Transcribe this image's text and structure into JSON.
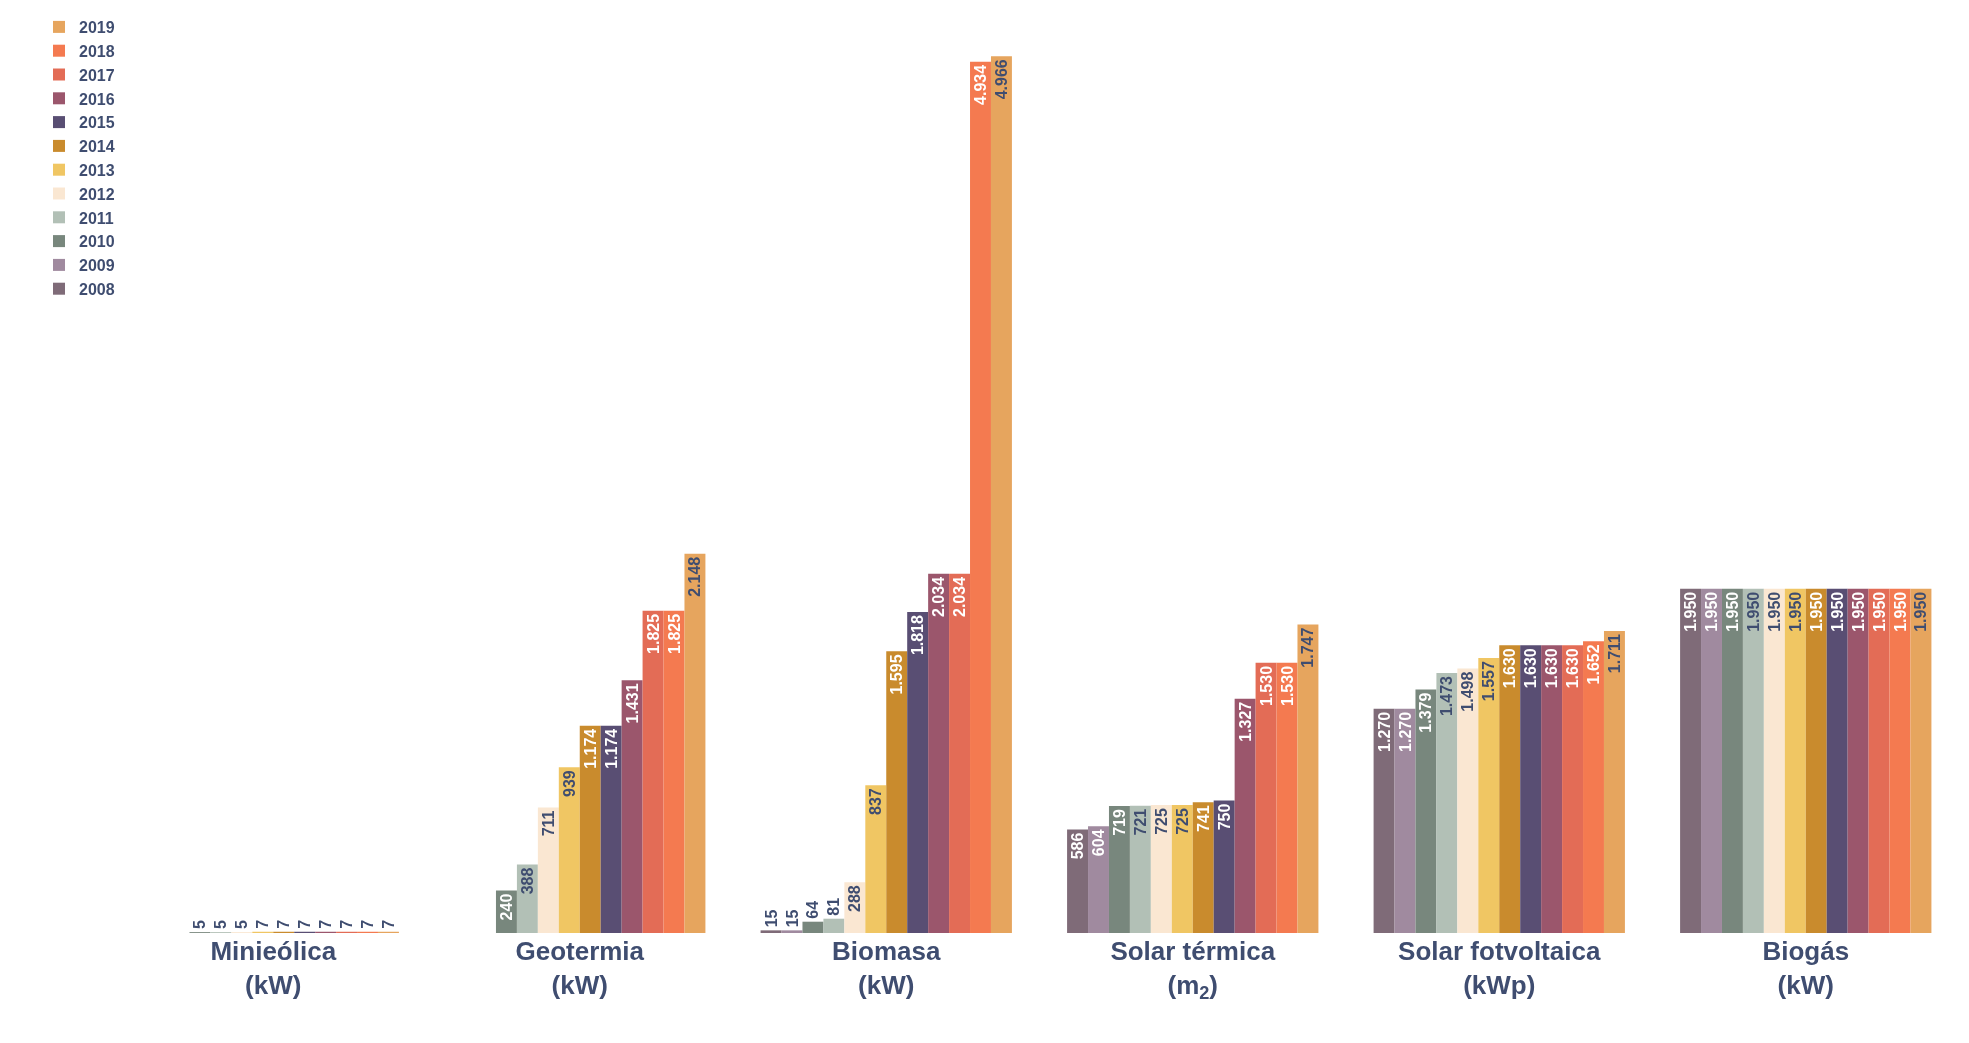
{
  "chart_data": {
    "type": "bar",
    "categories": [
      "Minieólica\n(kW)",
      "Geotermia\n(kW)",
      "Biomasa\n(kW)",
      "Solar térmica\n(m$_{2}$)",
      "Solar fotvoltaica\n(kWp)",
      "Biogás\n(kW)"
    ],
    "series": [
      {
        "name": "2008",
        "color": "#7f6b78",
        "values": [
          null,
          null,
          15,
          586,
          1270,
          1950
        ],
        "value_labels": [
          null,
          null,
          "15",
          "586",
          "1.270",
          "1.950"
        ]
      },
      {
        "name": "2009",
        "color": "#a08a9f",
        "values": [
          null,
          null,
          15,
          604,
          1270,
          1950
        ],
        "value_labels": [
          null,
          null,
          "15",
          "604",
          "1.270",
          "1.950"
        ]
      },
      {
        "name": "2010",
        "color": "#78877d",
        "values": [
          5,
          240,
          64,
          719,
          1379,
          1950
        ],
        "value_labels": [
          "5",
          "240",
          "64",
          "719",
          "1.379",
          "1.950"
        ]
      },
      {
        "name": "2011",
        "color": "#b2c0b6",
        "values": [
          5,
          388,
          81,
          721,
          1473,
          1950
        ],
        "value_labels": [
          "5",
          "388",
          "81",
          "721",
          "1.473",
          "1.950"
        ]
      },
      {
        "name": "2012",
        "color": "#fae7d2",
        "values": [
          5,
          711,
          288,
          725,
          1498,
          1950
        ],
        "value_labels": [
          "5",
          "711",
          "288",
          "725",
          "1.498",
          "1.950"
        ]
      },
      {
        "name": "2013",
        "color": "#f0c663",
        "values": [
          7,
          939,
          837,
          725,
          1557,
          1950
        ],
        "value_labels": [
          "7",
          "939",
          "837",
          "725",
          "1.557",
          "1.950"
        ]
      },
      {
        "name": "2014",
        "color": "#c98b2d",
        "values": [
          7,
          1174,
          1595,
          741,
          1630,
          1950
        ],
        "value_labels": [
          "7",
          "1.174",
          "1.595",
          "741",
          "1.630",
          "1.950"
        ]
      },
      {
        "name": "2015",
        "color": "#594e73",
        "values": [
          7,
          1174,
          1818,
          750,
          1630,
          1950
        ],
        "value_labels": [
          "7",
          "1.174",
          "1.818",
          "750",
          "1.630",
          "1.950"
        ]
      },
      {
        "name": "2016",
        "color": "#9b566c",
        "values": [
          7,
          1431,
          2034,
          1327,
          1630,
          1950
        ],
        "value_labels": [
          "7",
          "1.431",
          "2.034",
          "1.327",
          "1.630",
          "1.950"
        ]
      },
      {
        "name": "2017",
        "color": "#e36c56",
        "values": [
          7,
          1825,
          2034,
          1530,
          1630,
          1950
        ],
        "value_labels": [
          "7",
          "1.825",
          "2.034",
          "1.530",
          "1.630",
          "1.950"
        ]
      },
      {
        "name": "2018",
        "color": "#f47a50",
        "values": [
          7,
          1825,
          4934,
          1530,
          1652,
          1950
        ],
        "value_labels": [
          "7",
          "1.825",
          "4.934",
          "1.530",
          "1.652",
          "1.950"
        ]
      },
      {
        "name": "2019",
        "color": "#e6a55e",
        "values": [
          7,
          2148,
          4966,
          1747,
          1711,
          1950
        ],
        "value_labels": [
          "7",
          "2.148",
          "4.966",
          "1.747",
          "1.711",
          "1.950"
        ]
      }
    ],
    "legend": "top left"
  }
}
